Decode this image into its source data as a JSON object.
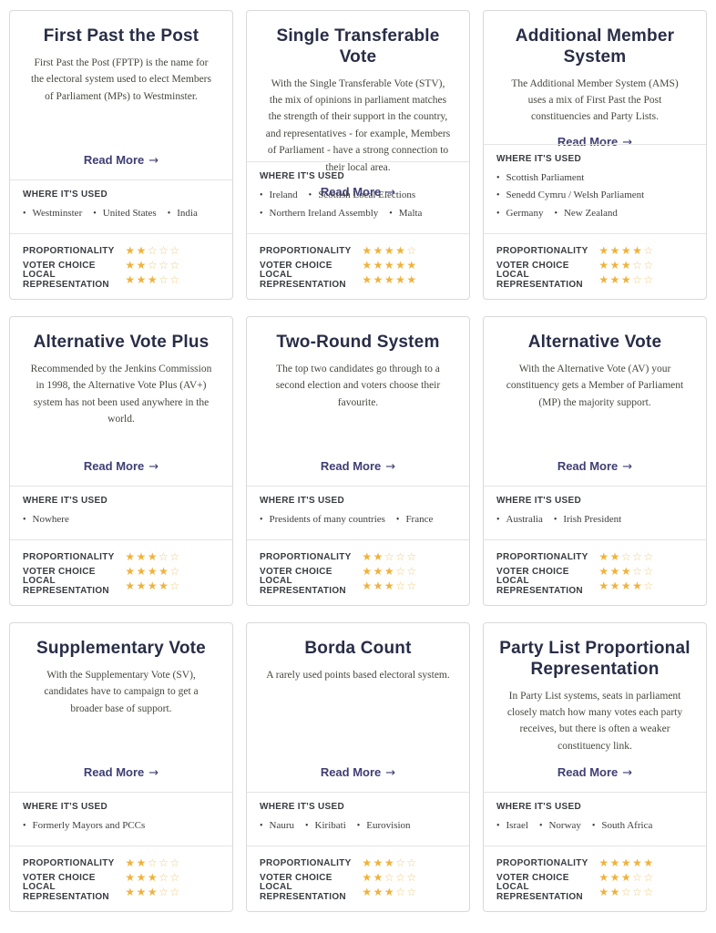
{
  "labels": {
    "where": "WHERE IT'S USED",
    "read_more": "Read More",
    "arrow": "→",
    "bullet": "•",
    "ratings": [
      "PROPORTIONALITY",
      "VOTER CHOICE",
      "LOCAL REPRESENTATION"
    ]
  },
  "stars": {
    "filled": "★",
    "empty": "☆",
    "max": 5
  },
  "colors": {
    "title": "#282d47",
    "accent": "#3e3e73",
    "label": "#383b40",
    "body_text": "#47473f",
    "star_filled": "#f0b23c",
    "star_empty": "#eecb7d",
    "card_border": "#d9d9d9",
    "divider": "#e4e4e4",
    "page_bg": "#ffffff"
  },
  "cards": [
    {
      "title": "First Past the Post",
      "description": "First Past the Post (FPTP) is the name for the electoral system used to elect Members of Parliament (MPs) to Westminster.",
      "locations": [
        "Westminster",
        "United States",
        "India"
      ],
      "ratings": [
        2,
        2,
        3
      ]
    },
    {
      "title": "Single Transferable Vote",
      "description": "With the Single Transferable Vote (STV), the mix of opinions in parliament matches the strength of their support in the country, and representatives - for example, Members of Parliament - have a strong connection to their local area.",
      "locations": [
        "Ireland",
        "Scottish Local Elections",
        "Northern Ireland Assembly",
        "Malta"
      ],
      "ratings": [
        4,
        5,
        5
      ]
    },
    {
      "title": "Additional Member System",
      "description": "The Additional Member System (AMS) uses a mix of First Past the Post constituencies and Party Lists.",
      "locations": [
        "Scottish Parliament",
        "Senedd Cymru / Welsh Parliament",
        "Germany",
        "New Zealand"
      ],
      "ratings": [
        4,
        3,
        3
      ]
    },
    {
      "title": "Alternative Vote Plus",
      "description": "Recommended by the Jenkins Commission in 1998, the Alternative Vote Plus (AV+) system has not been used anywhere in the world.",
      "locations": [
        "Nowhere"
      ],
      "ratings": [
        3,
        4,
        4
      ]
    },
    {
      "title": "Two-Round System",
      "description": "The top two candidates go through to a second election and voters choose their favourite.",
      "locations": [
        "Presidents of many countries",
        "France"
      ],
      "ratings": [
        2,
        3,
        3
      ]
    },
    {
      "title": "Alternative Vote",
      "description": "With the Alternative Vote (AV) your constituency gets a Member of Parliament (MP) the majority support.",
      "locations": [
        "Australia",
        "Irish President"
      ],
      "ratings": [
        2,
        3,
        4
      ]
    },
    {
      "title": "Supplementary Vote",
      "description": "With the Supplementary Vote (SV), candidates have to campaign to get a broader base of support.",
      "locations": [
        "Formerly Mayors and PCCs"
      ],
      "ratings": [
        2,
        3,
        3
      ]
    },
    {
      "title": "Borda Count",
      "description": "A rarely used points based electoral system.",
      "locations": [
        "Nauru",
        "Kiribati",
        "Eurovision"
      ],
      "ratings": [
        3,
        2,
        3
      ]
    },
    {
      "title": "Party List Proportional Representation",
      "description": "In Party List systems, seats in parliament closely match how many votes each party receives, but there is often a weaker constituency link.",
      "locations": [
        "Israel",
        "Norway",
        "South Africa"
      ],
      "ratings": [
        5,
        3,
        2
      ]
    }
  ]
}
